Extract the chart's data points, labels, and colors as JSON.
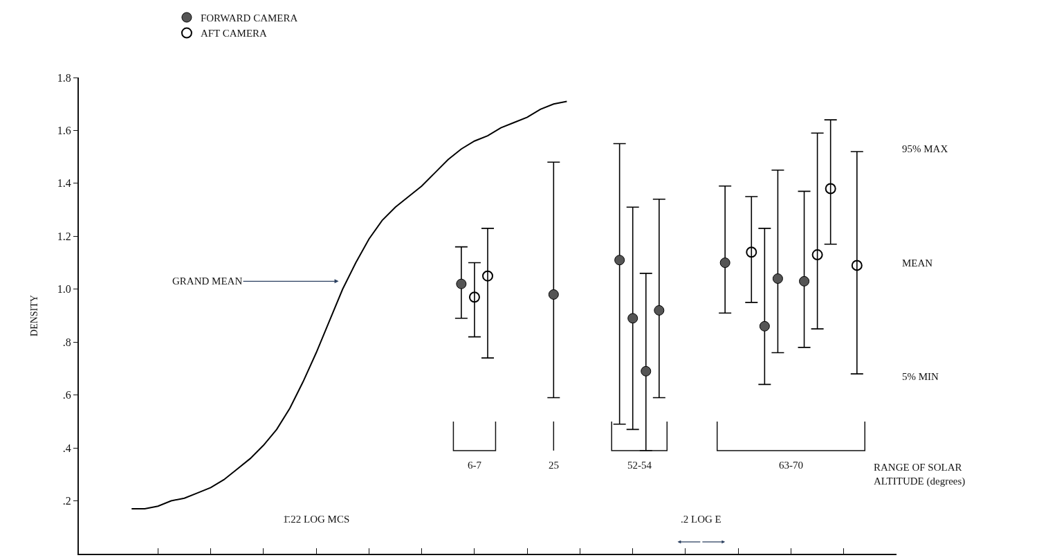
{
  "chart_data": {
    "type": "scatter",
    "ylabel": "DENSITY",
    "categories": [
      null,
      null,
      null,
      null,
      null,
      null,
      null,
      null,
      null,
      null,
      null,
      null,
      null,
      null,
      null,
      null,
      null,
      null,
      null,
      null,
      null,
      null,
      null,
      null,
      null,
      null,
      null,
      null,
      null,
      null,
      null,
      null,
      null,
      null,
      null,
      null,
      null,
      null,
      null,
      null,
      null,
      null,
      null,
      null,
      null,
      null,
      null,
      null,
      null,
      null,
      null,
      null,
      null,
      null,
      null,
      null,
      null
    ],
    "ylim": [
      0,
      1.8
    ],
    "yticks": [
      {
        "value": 0.2,
        "label": ".2"
      },
      {
        "value": 0.4,
        "label": ".4"
      },
      {
        "value": 0.6,
        "label": ".6"
      },
      {
        "value": 0.8,
        "label": ".8"
      },
      {
        "value": 1.0,
        "label": "1.0"
      },
      {
        "value": 1.2,
        "label": "1.2"
      },
      {
        "value": 1.4,
        "label": "1.4"
      },
      {
        "value": 1.6,
        "label": "1.6"
      },
      {
        "value": 1.8,
        "label": "1.8"
      }
    ],
    "tick_labels": "y",
    "legend": "top",
    "series": [
      {
        "name": "FORWARD CAMERA",
        "color": "#555555",
        "marker": "circle",
        "values": [
          null,
          null,
          null,
          null,
          null,
          null,
          null,
          null,
          null,
          null,
          null,
          null,
          null,
          null,
          null,
          null,
          null,
          null,
          null,
          null,
          null,
          null,
          null,
          null,
          null,
          1.02,
          null,
          null,
          null,
          null,
          null,
          null,
          0.98,
          null,
          null,
          null,
          null,
          1.11,
          0.89,
          0.69,
          0.92,
          null,
          null,
          null,
          null,
          1.1,
          null,
          null,
          0.86,
          1.04,
          null,
          1.03,
          null,
          null,
          null,
          null,
          null
        ],
        "errors": [
          null,
          null,
          null,
          null,
          null,
          null,
          null,
          null,
          null,
          null,
          null,
          null,
          null,
          null,
          null,
          null,
          null,
          null,
          null,
          null,
          null,
          null,
          null,
          null,
          null,
          [
            0.89,
            1.16
          ],
          null,
          null,
          null,
          null,
          null,
          null,
          [
            0.59,
            1.48
          ],
          null,
          null,
          null,
          null,
          [
            0.49,
            1.55
          ],
          [
            0.47,
            1.31
          ],
          [
            0.39,
            1.06
          ],
          [
            0.59,
            1.34
          ],
          null,
          null,
          null,
          null,
          [
            0.91,
            1.39
          ],
          null,
          null,
          [
            0.64,
            1.23
          ],
          [
            0.76,
            1.45
          ],
          null,
          [
            0.78,
            1.37
          ],
          null,
          null,
          null,
          null,
          null
        ]
      },
      {
        "name": "AFT CAMERA",
        "color": "#000000",
        "marker": "circle-open",
        "values": [
          null,
          null,
          null,
          null,
          null,
          null,
          null,
          null,
          null,
          null,
          null,
          null,
          null,
          null,
          null,
          null,
          null,
          null,
          null,
          null,
          null,
          null,
          null,
          null,
          null,
          null,
          0.97,
          1.05,
          null,
          null,
          null,
          null,
          null,
          null,
          null,
          null,
          null,
          null,
          null,
          null,
          null,
          null,
          null,
          null,
          null,
          null,
          null,
          1.14,
          null,
          null,
          null,
          null,
          1.13,
          1.38,
          null,
          1.09,
          null
        ],
        "errors": [
          null,
          null,
          null,
          null,
          null,
          null,
          null,
          null,
          null,
          null,
          null,
          null,
          null,
          null,
          null,
          null,
          null,
          null,
          null,
          null,
          null,
          null,
          null,
          null,
          null,
          null,
          [
            0.82,
            1.1
          ],
          [
            0.74,
            1.23
          ],
          null,
          null,
          null,
          null,
          null,
          null,
          null,
          null,
          null,
          null,
          null,
          null,
          null,
          null,
          null,
          null,
          null,
          null,
          null,
          [
            0.95,
            1.35
          ],
          null,
          null,
          null,
          null,
          [
            0.85,
            1.59
          ],
          [
            1.17,
            1.64
          ],
          null,
          [
            0.68,
            1.52
          ],
          null
        ]
      },
      {
        "type": "line",
        "color": "#000000",
        "values": [
          0.17,
          0.17,
          0.18,
          0.2,
          0.21,
          0.23,
          0.25,
          0.28,
          0.32,
          0.36,
          0.41,
          0.47,
          0.55,
          0.65,
          0.76,
          0.88,
          1.0,
          1.1,
          1.19,
          1.26,
          1.31,
          1.35,
          1.39,
          1.44,
          1.49,
          1.53,
          1.56,
          1.58,
          1.61,
          1.63,
          1.65,
          1.68,
          1.7,
          1.71,
          null,
          null,
          null,
          null,
          null,
          null,
          null,
          null,
          null,
          null,
          null,
          null,
          null,
          null,
          null,
          null,
          null,
          null,
          null,
          null,
          null,
          null,
          null
        ]
      }
    ],
    "annotations": [
      "GRAND MEAN",
      "6-7",
      "25",
      "52-54",
      "63-70",
      "1̄.22 LOG MCS",
      ".2 LOG E",
      "95% MAX",
      "MEAN",
      "5% MIN",
      "RANGE OF SOLAR\nALTITUDE (degrees)"
    ]
  }
}
